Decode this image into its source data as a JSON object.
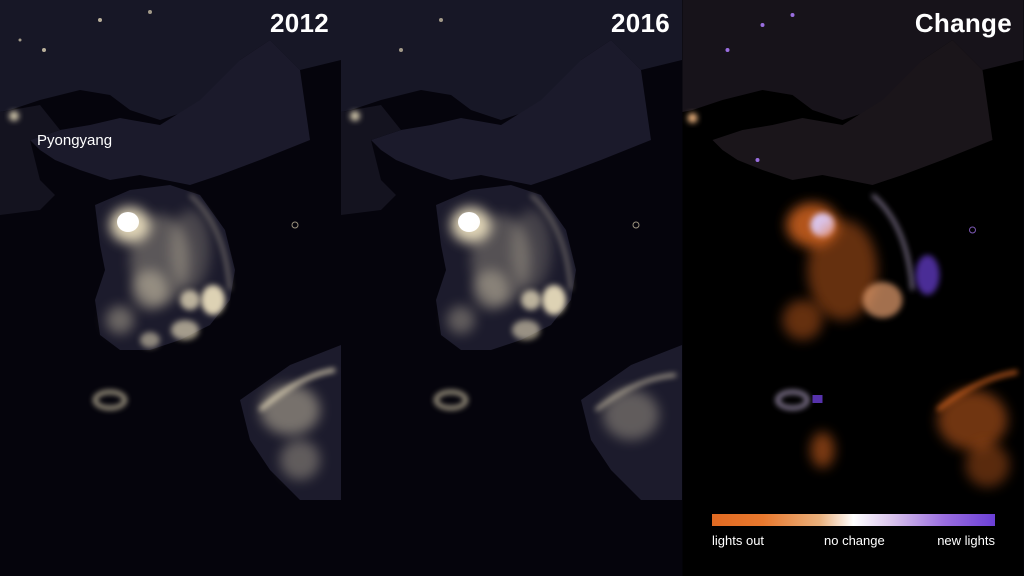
{
  "panels": [
    {
      "title": "2012"
    },
    {
      "title": "2016"
    },
    {
      "title": "Change"
    }
  ],
  "city_label": "Pyongyang",
  "legend": {
    "left": "lights out",
    "middle": "no change",
    "right": "new lights"
  },
  "colors": {
    "background": "#05040c",
    "land": "#1a1a2a",
    "city_lights": "#fff2cc",
    "lights_out": "#e06a22",
    "no_change": "#ffffff",
    "new_lights": "#6b3fd6"
  }
}
